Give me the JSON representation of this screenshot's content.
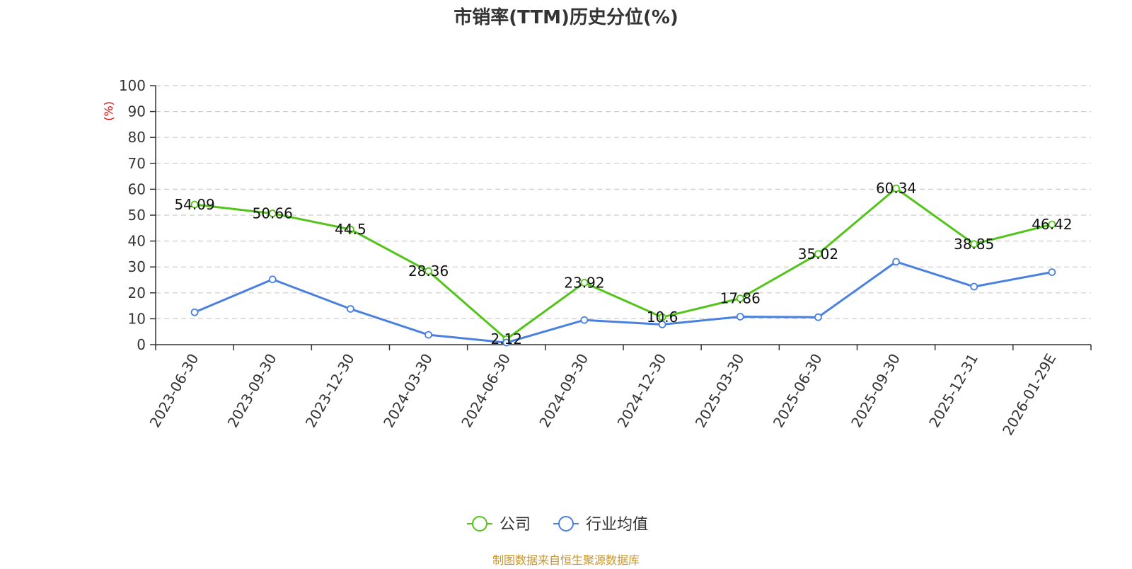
{
  "chart_data": {
    "type": "line",
    "title": "市销率(TTM)历史分位(%)",
    "y_unit": "(%)",
    "categories": [
      "2023-06-30",
      "2023-09-30",
      "2023-12-30",
      "2024-03-30",
      "2024-06-30",
      "2024-09-30",
      "2024-12-30",
      "2025-03-30",
      "2025-06-30",
      "2025-09-30",
      "2025-12-31",
      "2026-01-29E"
    ],
    "series": [
      {
        "name": "公司",
        "color": "#52c41a",
        "values": [
          54.09,
          50.66,
          44.5,
          28.36,
          2.12,
          23.92,
          10.6,
          17.86,
          35.02,
          60.34,
          38.85,
          46.42
        ],
        "show_labels": true
      },
      {
        "name": "行业均值",
        "color": "#4a80e0",
        "values": [
          12.5,
          25.2,
          13.8,
          3.8,
          0.8,
          9.5,
          7.8,
          10.8,
          10.6,
          32.0,
          22.4,
          28.0
        ],
        "show_labels": false
      }
    ],
    "ylim": [
      0,
      100
    ],
    "yticks": [
      0,
      10,
      20,
      30,
      40,
      50,
      60,
      70,
      80,
      90,
      100
    ],
    "grid": true,
    "legend_position": "bottom-center"
  },
  "source_text": "制图数据来自恒生聚源数据库",
  "colors": {
    "unit": "#e00000",
    "source": "#c8962c",
    "axis": "#333333",
    "grid": "#cccccc"
  }
}
